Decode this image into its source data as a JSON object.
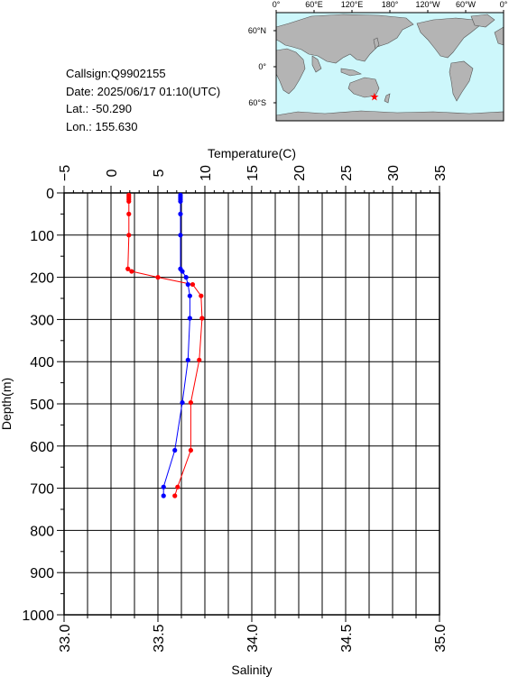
{
  "station": {
    "callsign": "Callsign:Q9902155",
    "date": "Date:  2025/06/17 01:10(UTC)",
    "lat": "Lat.:  -50.290",
    "lon": "Lon.:  155.630"
  },
  "map": {
    "lon_labels": [
      "0°",
      "60°E",
      "120°E",
      "180°",
      "120°W",
      "60°W",
      "0°"
    ],
    "lat_labels": [
      "60°N",
      "0°",
      "60°S"
    ],
    "marker": {
      "lon": 155.63,
      "lat": -50.29,
      "symbol": "★",
      "color": "#ff0000"
    },
    "ocean_color": "#cdf7fb",
    "land_color": "#b4b4b4"
  },
  "chart_data": {
    "type": "line",
    "y_axis": {
      "label": "Depth(m)",
      "range": [
        0,
        1000
      ],
      "reversed": true,
      "ticks": [
        "0",
        "100",
        "200",
        "300",
        "400",
        "500",
        "600",
        "700",
        "800",
        "900",
        "1000"
      ]
    },
    "x_top": {
      "label": "Temperature(C)",
      "range": [
        -5,
        35
      ],
      "ticks": [
        "−5",
        "0",
        "5",
        "10",
        "15",
        "20",
        "25",
        "30",
        "35"
      ]
    },
    "x_bottom": {
      "label": "Salinity",
      "range": [
        33.0,
        35.0
      ],
      "ticks": [
        "33.0",
        "33.5",
        "34.0",
        "34.5",
        "35.0"
      ]
    },
    "grid": true,
    "series": [
      {
        "color": "#ff0000",
        "axis": "temperature",
        "depth": [
          5,
          10,
          15,
          20,
          50,
          100,
          180,
          186,
          200,
          217,
          244,
          297,
          396,
          497,
          610,
          697,
          718
        ],
        "values": [
          1.9,
          1.9,
          1.9,
          1.9,
          1.9,
          1.9,
          1.8,
          2.2,
          5.0,
          8.7,
          9.6,
          9.7,
          9.4,
          8.5,
          8.5,
          7.1,
          6.8
        ]
      },
      {
        "color": "#0000ff",
        "axis": "salinity",
        "depth": [
          5,
          10,
          15,
          20,
          50,
          100,
          180,
          186,
          200,
          217,
          244,
          297,
          396,
          497,
          610,
          697,
          718
        ],
        "values": [
          33.62,
          33.62,
          33.62,
          33.62,
          33.62,
          33.62,
          33.62,
          33.63,
          33.65,
          33.66,
          33.67,
          33.67,
          33.66,
          33.63,
          33.59,
          33.53,
          33.53
        ]
      }
    ]
  }
}
